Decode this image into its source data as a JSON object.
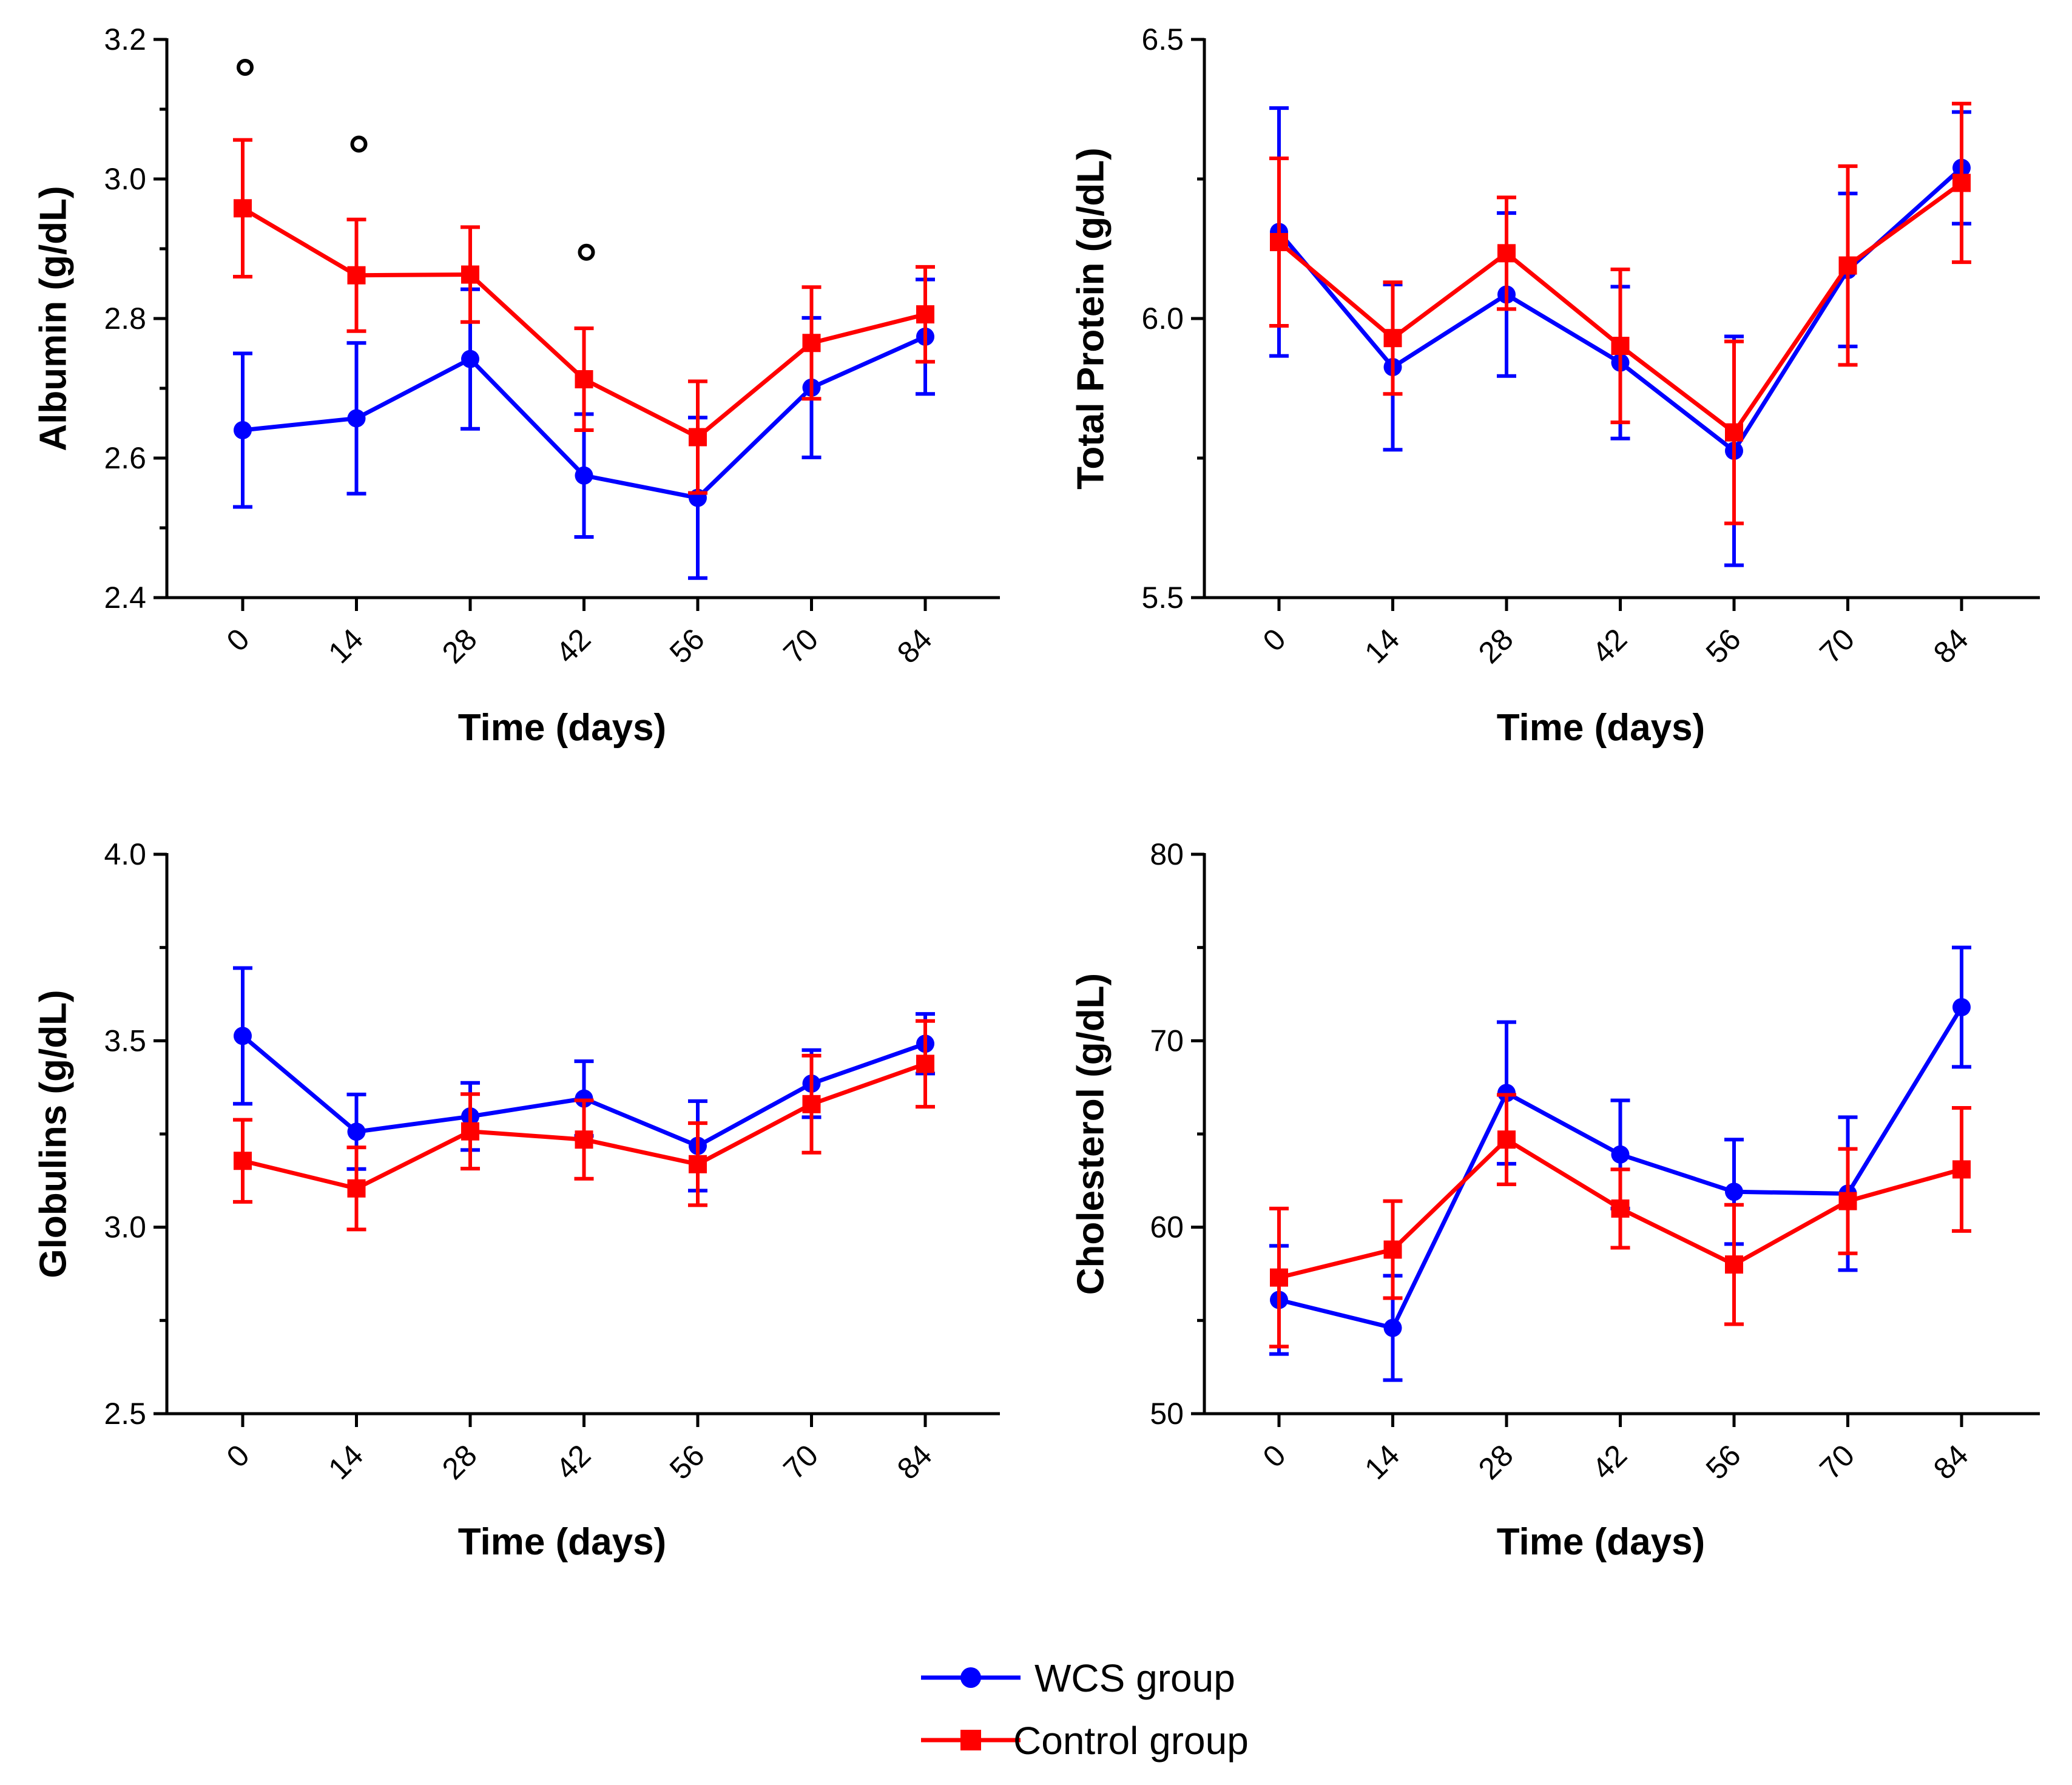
{
  "colors": {
    "wcs": "#0000ff",
    "control": "#ff0000",
    "marker": "#000000"
  },
  "legend": {
    "items": [
      {
        "label": "WCS group",
        "color": "#0000ff",
        "marker": "circle"
      },
      {
        "label": "Control group",
        "color": "#ff0000",
        "marker": "square"
      }
    ]
  },
  "chart_data": [
    {
      "type": "line",
      "title": "",
      "xlabel": "Time (days)",
      "ylabel": "Albumin (g/dL)",
      "categories": [
        "0",
        "14",
        "28",
        "42",
        "56",
        "70",
        "84"
      ],
      "ylim": [
        2.4,
        3.2
      ],
      "yticks": [
        "2.4",
        "2.6",
        "2.8",
        "3.0",
        "3.2"
      ],
      "series": [
        {
          "name": "WCS group",
          "values": [
            2.64,
            2.657,
            2.742,
            2.575,
            2.543,
            2.701,
            2.774
          ],
          "errors": [
            0.11,
            0.108,
            0.1,
            0.088,
            0.115,
            0.1,
            0.082
          ]
        },
        {
          "name": "Control group",
          "values": [
            2.958,
            2.862,
            2.863,
            2.713,
            2.63,
            2.765,
            2.806
          ],
          "errors": [
            0.098,
            0.08,
            0.068,
            0.073,
            0.08,
            0.08,
            0.068
          ]
        }
      ],
      "annotations": [
        {
          "text": "o",
          "x": "0",
          "y": 3.16
        },
        {
          "text": "o",
          "x": "14",
          "y": 3.05
        },
        {
          "text": "o",
          "x": "42",
          "y": 2.895
        }
      ]
    },
    {
      "type": "line",
      "title": "",
      "xlabel": "Time (days)",
      "ylabel": "Total Protein (g/dL)",
      "categories": [
        "0",
        "14",
        "28",
        "42",
        "56",
        "70",
        "84"
      ],
      "ylim": [
        5.5,
        6.5
      ],
      "yticks": [
        "5.5",
        "6.0",
        "6.5"
      ],
      "series": [
        {
          "name": "WCS group",
          "values": [
            6.155,
            5.913,
            6.043,
            5.921,
            5.763,
            6.087,
            6.27
          ],
          "errors": [
            0.222,
            0.148,
            0.146,
            0.136,
            0.205,
            0.137,
            0.1
          ]
        },
        {
          "name": "Control group",
          "values": [
            6.137,
            5.965,
            6.117,
            5.951,
            5.796,
            6.095,
            6.243
          ],
          "errors": [
            0.15,
            0.1,
            0.1,
            0.137,
            0.163,
            0.178,
            0.142
          ]
        }
      ],
      "annotations": []
    },
    {
      "type": "line",
      "title": "",
      "xlabel": "Time (days)",
      "ylabel": "Globulins (g/dL)",
      "categories": [
        "0",
        "14",
        "28",
        "42",
        "56",
        "70",
        "84"
      ],
      "ylim": [
        2.5,
        4.0
      ],
      "yticks": [
        "2.5",
        "3.0",
        "3.5",
        "4.0"
      ],
      "series": [
        {
          "name": "WCS group",
          "values": [
            3.513,
            3.256,
            3.297,
            3.345,
            3.218,
            3.385,
            3.492
          ],
          "errors": [
            0.182,
            0.1,
            0.09,
            0.1,
            0.12,
            0.09,
            0.08
          ]
        },
        {
          "name": "Control group",
          "values": [
            3.178,
            3.104,
            3.257,
            3.235,
            3.169,
            3.33,
            3.438
          ],
          "errors": [
            0.11,
            0.11,
            0.1,
            0.105,
            0.11,
            0.13,
            0.115
          ]
        }
      ],
      "annotations": []
    },
    {
      "type": "line",
      "title": "",
      "xlabel": "Time (days)",
      "ylabel": "Cholesterol (g/dL)",
      "categories": [
        "0",
        "14",
        "28",
        "42",
        "56",
        "70",
        "84"
      ],
      "ylim": [
        50,
        80
      ],
      "yticks": [
        "50",
        "60",
        "70",
        "80"
      ],
      "series": [
        {
          "name": "WCS group",
          "values": [
            56.1,
            54.6,
            67.2,
            63.9,
            61.9,
            61.8,
            71.8
          ],
          "errors": [
            2.9,
            2.8,
            3.8,
            2.9,
            2.8,
            4.1,
            3.2
          ]
        },
        {
          "name": "Control group",
          "values": [
            57.3,
            58.8,
            64.7,
            61.0,
            58.0,
            61.4,
            63.1
          ],
          "errors": [
            3.7,
            2.6,
            2.4,
            2.1,
            3.2,
            2.8,
            3.3
          ]
        }
      ],
      "annotations": []
    }
  ]
}
